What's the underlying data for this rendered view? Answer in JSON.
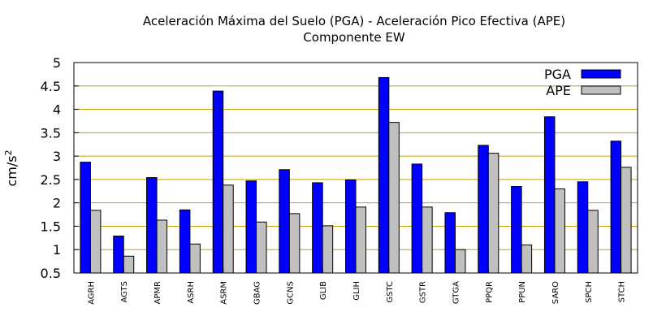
{
  "chart_data": {
    "type": "bar",
    "title": "Aceleración Máxima del Suelo (PGA) -  Aceleración Pico Efectiva (APE)",
    "subtitle": "Componente EW",
    "ylabel": "cm/s",
    "ylabel_sup": "2",
    "xlabel": "",
    "ylim": [
      0.5,
      5
    ],
    "yticks": [
      "0.5",
      "1",
      "1.5",
      "2",
      "2.5",
      "3",
      "3.5",
      "4",
      "4.5",
      "5"
    ],
    "grid": "horizontal",
    "legend_position": "top-right",
    "categories": [
      "AGRH",
      "AGTS",
      "APMR",
      "ASRH",
      "ASRM",
      "GBAG",
      "GCNS",
      "GLIB",
      "GLIH",
      "GSTC",
      "GSTR",
      "GTGA",
      "PPQR",
      "PPUN",
      "SARO",
      "SPCH",
      "STCH"
    ],
    "series": [
      {
        "name": "PGA",
        "color": "#0000ff",
        "values": [
          2.87,
          1.29,
          2.54,
          1.85,
          4.39,
          2.47,
          2.71,
          2.43,
          2.49,
          4.68,
          2.83,
          1.79,
          3.23,
          2.35,
          3.84,
          2.45,
          3.32
        ]
      },
      {
        "name": "APE",
        "color": "#c0c0c0",
        "values": [
          1.84,
          0.86,
          1.63,
          1.12,
          2.38,
          1.59,
          1.77,
          1.51,
          1.91,
          3.72,
          1.91,
          1.0,
          3.06,
          1.1,
          2.3,
          1.84,
          2.76
        ]
      }
    ]
  }
}
